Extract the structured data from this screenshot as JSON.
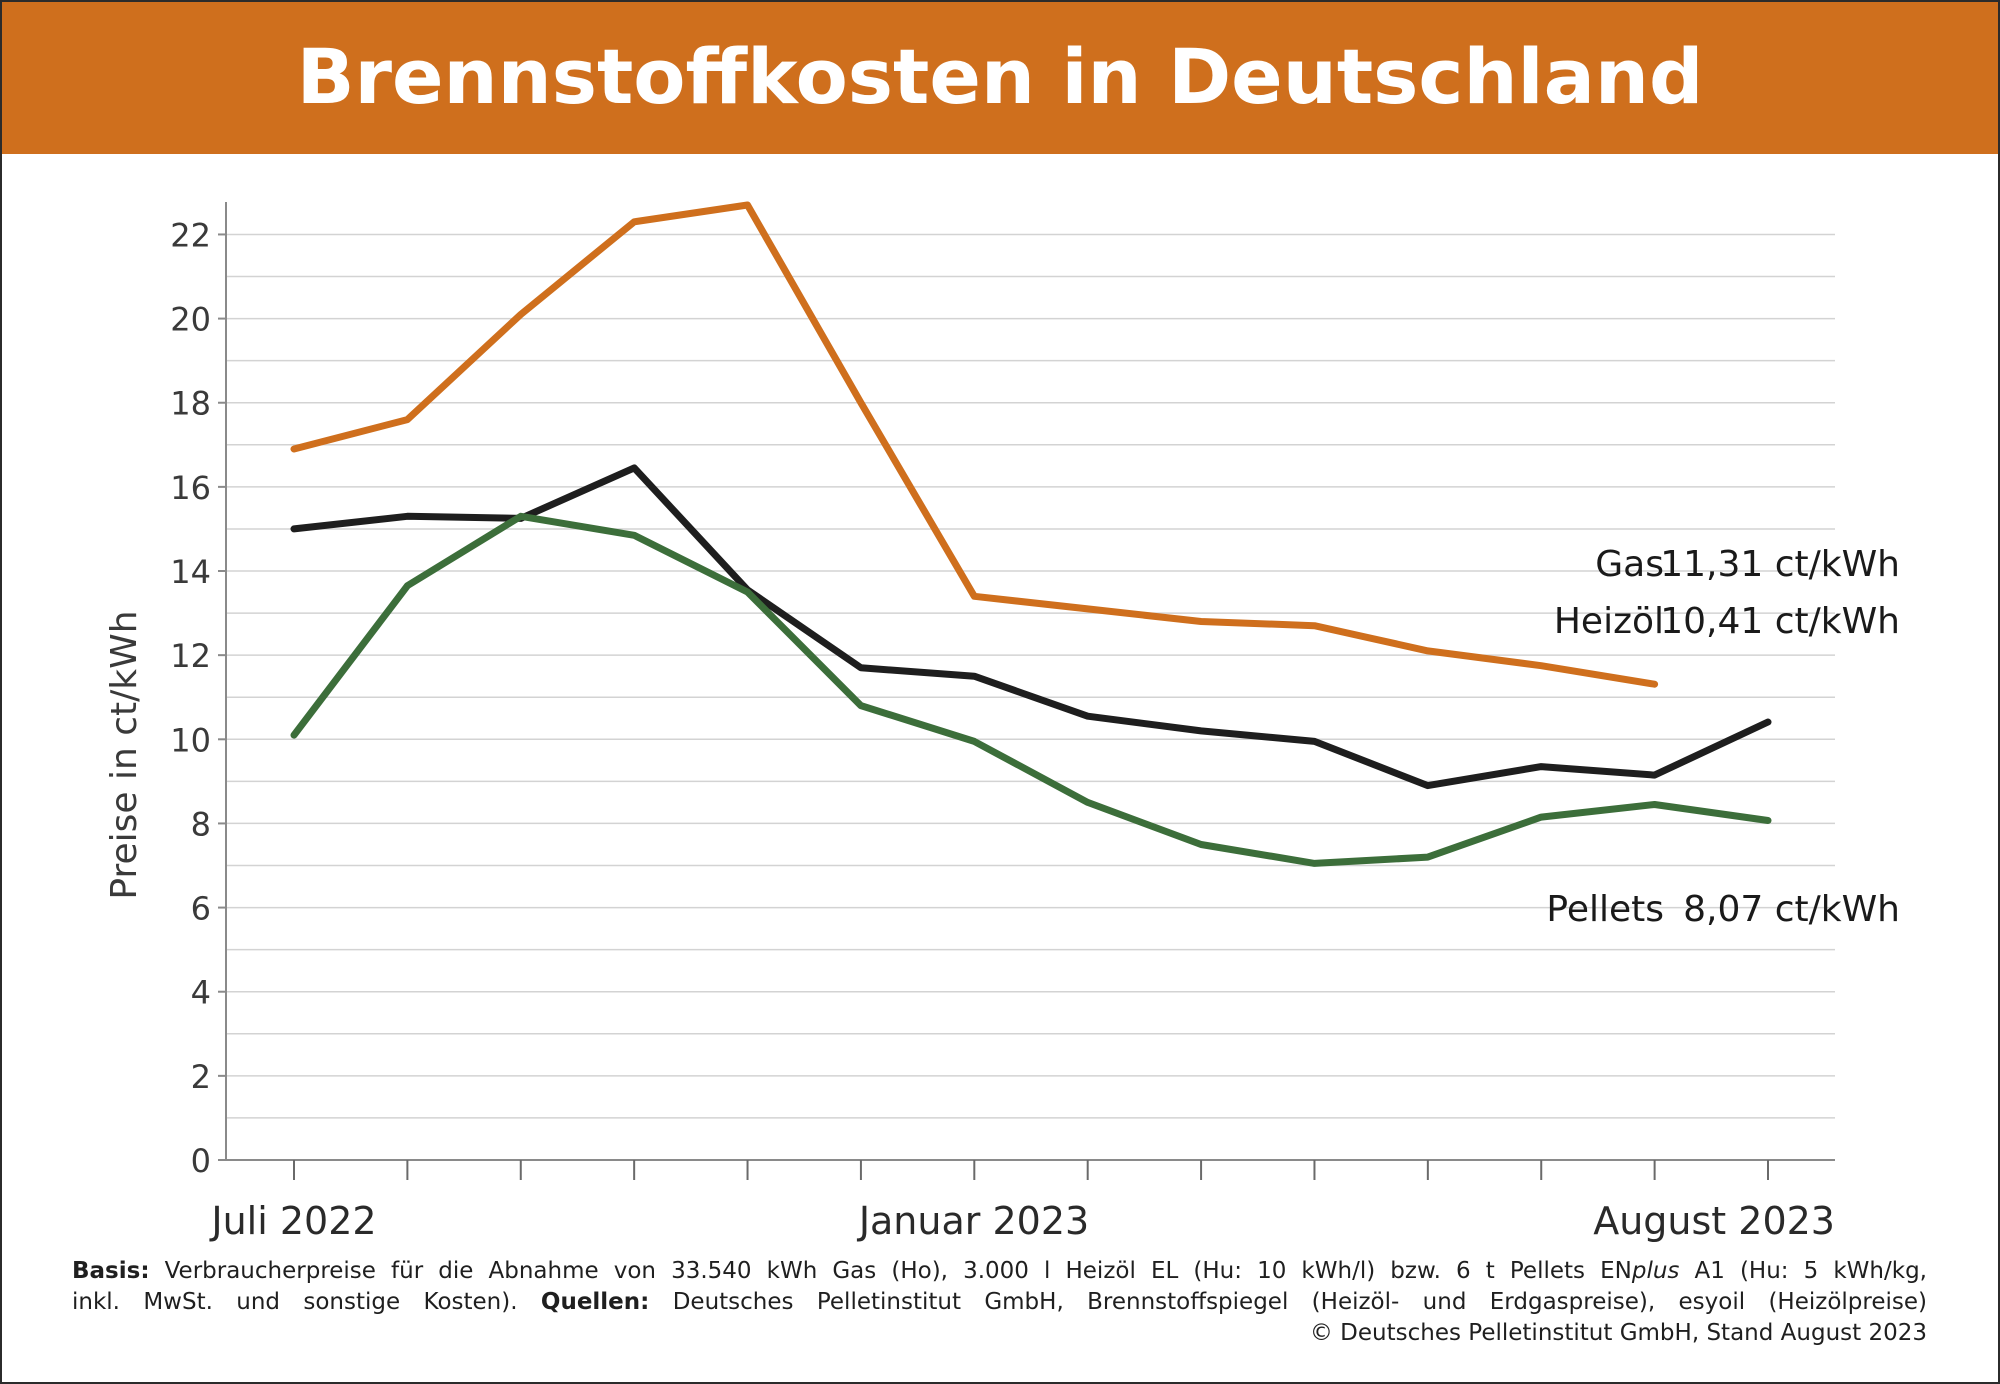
{
  "header": {
    "title": "Brennstoffkosten in Deutschland"
  },
  "colors": {
    "header_bg": "#cf6f1d",
    "gas": "#cf6f1d",
    "heizoel": "#1e1e1e",
    "pellets": "#3c6e3a",
    "grid": "#d3d3d3"
  },
  "chart_data": {
    "type": "line",
    "title": "Brennstoffkosten in Deutschland",
    "ylabel": "Preise in ct/kWh",
    "xlabel": "",
    "ylim": [
      0,
      22.7
    ],
    "yticks": [
      0,
      2,
      4,
      6,
      8,
      10,
      12,
      14,
      16,
      18,
      20,
      22
    ],
    "ytick_labels": [
      "0",
      "2",
      "4",
      "6",
      "8",
      "10",
      "12",
      "14",
      "16",
      "18",
      "20",
      "22"
    ],
    "x_label_texts": [
      "Juli 2022",
      "Januar 2023",
      "August 2023"
    ],
    "grid": true,
    "series": [
      {
        "key": "gas",
        "name": "Gas",
        "end_label": "11,31 ct/kWh",
        "values": [
          16.9,
          17.6,
          20.1,
          22.3,
          22.7,
          18.0,
          13.4,
          13.1,
          12.8,
          12.7,
          12.1,
          11.75,
          11.31,
          null
        ]
      },
      {
        "key": "heizoel",
        "name": "Heizöl",
        "end_label": "10,41 ct/kWh",
        "values": [
          15.0,
          15.3,
          15.25,
          16.45,
          13.55,
          11.7,
          11.5,
          10.55,
          10.2,
          9.95,
          8.9,
          9.35,
          9.15,
          10.41
        ]
      },
      {
        "key": "pellets",
        "name": "Pellets",
        "end_label": "8,07 ct/kWh",
        "values": [
          10.1,
          13.65,
          15.3,
          14.85,
          13.5,
          10.8,
          9.95,
          8.5,
          7.5,
          7.05,
          7.2,
          8.15,
          8.45,
          8.07
        ]
      }
    ]
  },
  "footnote": {
    "basis_label": "Basis:",
    "basis_text": " Verbraucherpreise für die Abnahme von 33.540 kWh Gas (Ho), 3.000 l Heizöl EL (Hu: 10 kWh/l) bzw. 6 t Pellets EN",
    "basis_italic": "plus",
    "basis_text2": " A1 (Hu: 5 kWh/kg,",
    "line2_text": "inkl. MwSt. und sonstige Kosten). ",
    "quellen_label": "Quellen:",
    "quellen_text": " Deutsches Pelletinstitut GmbH, Brennstoffspiegel (Heizöl- und Erdgaspreise), esyoil (Heizölpreise)",
    "copyright": "© Deutsches Pelletinstitut GmbH, Stand August 2023"
  }
}
